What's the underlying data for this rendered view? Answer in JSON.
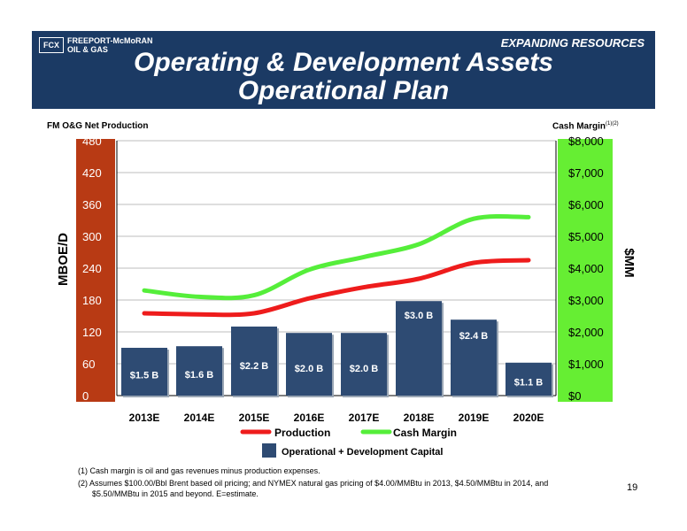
{
  "header": {
    "logo_mark": "FCX",
    "logo_line1": "FREEPORT-McMoRAN",
    "logo_line2": "OIL & GAS",
    "tagline": "EXPANDING RESOURCES",
    "title_line1": "Operating & Development Assets",
    "title_line2": "Operational Plan"
  },
  "left_caption": "FM O&G Net Production",
  "right_caption": "Cash Margin",
  "right_caption_sup": "(1)(2)",
  "footnotes": [
    "(1) Cash margin is oil and gas revenues minus production expenses.",
    "(2) Assumes $100.00/Bbl Brent based oil pricing; and NYMEX natural gas pricing of $4.00/MMBtu in 2013, $4.50/MMBtu in 2014, and",
    "$5.50/MMBtu in 2015 and beyond. E=estimate."
  ],
  "page_number": "19",
  "colors": {
    "bar": "#2e4b73",
    "production": "#ee1c1c",
    "cash_margin": "#55ee3a",
    "left_axis_bg": "#b83a14",
    "right_axis_bg": "#66ee33",
    "banner": "#1b3a64"
  },
  "chart_data": {
    "type": "bar",
    "categories": [
      "2013E",
      "2014E",
      "2015E",
      "2016E",
      "2017E",
      "2018E",
      "2019E",
      "2020E"
    ],
    "series": [
      {
        "name": "Operational + Development Capital",
        "kind": "bar",
        "axis": "left",
        "values": [
          90,
          93,
          130,
          118,
          118,
          178,
          143,
          62
        ],
        "labels": [
          "$1.5 B",
          "$1.6 B",
          "$2.2 B",
          "$2.0 B",
          "$2.0 B",
          "$3.0 B",
          "$2.4 B",
          "$1.1 B"
        ]
      },
      {
        "name": "Production",
        "kind": "line",
        "axis": "left",
        "values": [
          155,
          153,
          155,
          183,
          204,
          220,
          250,
          255
        ]
      },
      {
        "name": "Cash Margin",
        "kind": "line",
        "axis": "right",
        "values": [
          3300,
          3100,
          3150,
          3950,
          4350,
          4750,
          5550,
          5600
        ]
      }
    ],
    "ylabel": "MBOE/D",
    "ylabel_right": "$MM",
    "ylim": [
      0,
      480
    ],
    "ylim_right": [
      0,
      8000
    ],
    "yticks": [
      "0",
      "60",
      "120",
      "180",
      "240",
      "300",
      "360",
      "420",
      "480"
    ],
    "yticks_right": [
      "$0",
      "$1,000",
      "$2,000",
      "$3,000",
      "$4,000",
      "$5,000",
      "$6,000",
      "$7,000",
      "$8,000"
    ],
    "grid": true,
    "legend_position": "bottom"
  }
}
